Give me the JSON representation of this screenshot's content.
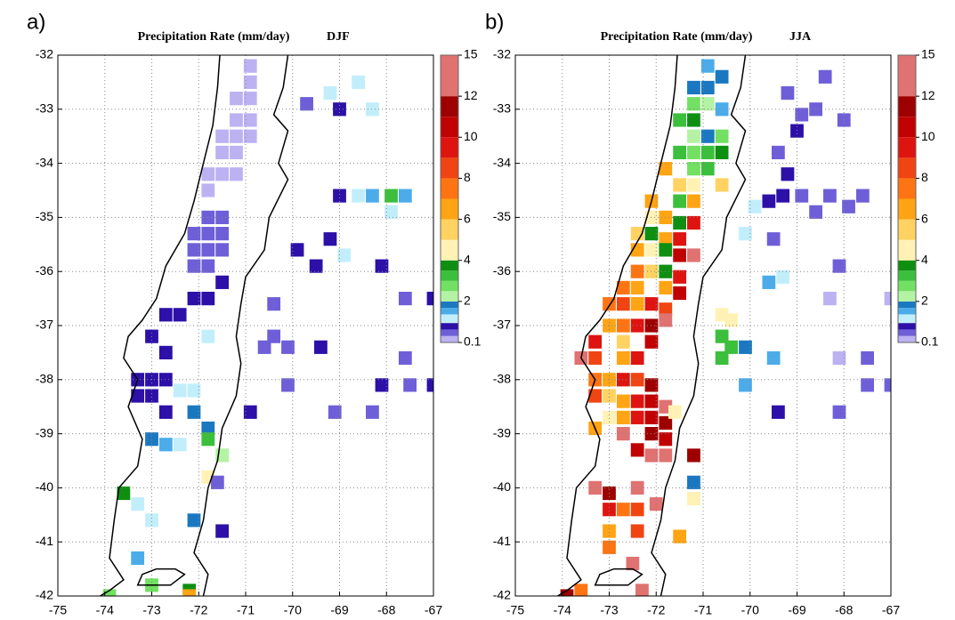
{
  "chart_data": [
    {
      "type": "gridmap",
      "panel_label": "a)",
      "title": "Precipitation Rate (mm/day)",
      "season": "DJF",
      "xlim": [
        -75,
        -67
      ],
      "ylim": [
        -42,
        -32
      ],
      "xticks": [
        -75,
        -74,
        -73,
        -72,
        -71,
        -70,
        -69,
        -68,
        -67
      ],
      "yticks": [
        -32,
        -33,
        -34,
        -35,
        -36,
        -37,
        -38,
        -39,
        -40,
        -41,
        -42
      ],
      "grid": true,
      "cell_size": [
        0.28,
        0.25
      ],
      "colorbar": {
        "levels": [
          0.1,
          0.4,
          0.7,
          1,
          1.4,
          1.7,
          2,
          2.5,
          3,
          3.5,
          4,
          5,
          6,
          7,
          8,
          9,
          10,
          11,
          12,
          15
        ],
        "colors": [
          "#bcb2f2",
          "#6e5fd8",
          "#2c10a8",
          "#c2eefb",
          "#4cacea",
          "#1b78c0",
          "#b4f2a4",
          "#72e062",
          "#3cbf3c",
          "#0e8f12",
          "#fff2b4",
          "#ffd262",
          "#ffa414",
          "#ff7412",
          "#f04412",
          "#de1410",
          "#c00202",
          "#9e0000",
          "#e07272"
        ],
        "ticks": [
          0.1,
          2,
          4,
          6,
          8,
          10,
          12,
          15
        ]
      },
      "cells": [
        [
          -70.9,
          -32.2,
          0.2
        ],
        [
          -70.9,
          -32.5,
          0.2
        ],
        [
          -71.2,
          -32.8,
          0.2
        ],
        [
          -70.9,
          -32.8,
          0.2
        ],
        [
          -71.2,
          -33.2,
          0.2
        ],
        [
          -70.9,
          -33.2,
          0.2
        ],
        [
          -71.5,
          -33.5,
          0.2
        ],
        [
          -71.2,
          -33.5,
          0.2
        ],
        [
          -70.9,
          -33.5,
          0.2
        ],
        [
          -71.5,
          -33.8,
          0.2
        ],
        [
          -71.2,
          -33.8,
          0.2
        ],
        [
          -71.8,
          -34.2,
          0.2
        ],
        [
          -71.5,
          -34.2,
          0.2
        ],
        [
          -71.2,
          -34.2,
          0.2
        ],
        [
          -71.8,
          -34.5,
          0.2
        ],
        [
          -71.8,
          -35,
          0.5
        ],
        [
          -71.5,
          -35,
          0.5
        ],
        [
          -72.1,
          -35.3,
          0.5
        ],
        [
          -71.8,
          -35.3,
          0.5
        ],
        [
          -71.5,
          -35.3,
          0.5
        ],
        [
          -72.1,
          -35.6,
          0.5
        ],
        [
          -71.8,
          -35.6,
          0.5
        ],
        [
          -71.5,
          -35.6,
          0.5
        ],
        [
          -72.1,
          -35.9,
          0.5
        ],
        [
          -71.8,
          -35.9,
          0.5
        ],
        [
          -71.5,
          -36.2,
          0.8
        ],
        [
          -72.1,
          -36.5,
          0.8
        ],
        [
          -71.8,
          -36.5,
          0.8
        ],
        [
          -72.7,
          -36.8,
          0.8
        ],
        [
          -72.4,
          -36.8,
          0.8
        ],
        [
          -73,
          -37.2,
          0.8
        ],
        [
          -72.7,
          -37.5,
          0.8
        ],
        [
          -73.3,
          -38,
          0.8
        ],
        [
          -73,
          -38,
          0.8
        ],
        [
          -72.7,
          -38,
          0.8
        ],
        [
          -73.3,
          -38.3,
          0.8
        ],
        [
          -73,
          -38.3,
          0.8
        ],
        [
          -72.7,
          -38.6,
          0.8
        ],
        [
          -72.4,
          -38.2,
          1.2
        ],
        [
          -72.1,
          -38.2,
          1.2
        ],
        [
          -71.8,
          -37.2,
          1.2
        ],
        [
          -72.4,
          -39.2,
          1.2
        ],
        [
          -73.3,
          -40.3,
          1.2
        ],
        [
          -73,
          -40.6,
          1.2
        ],
        [
          -72.1,
          -38.6,
          1.8
        ],
        [
          -71.8,
          -38.9,
          1.8
        ],
        [
          -73,
          -39.1,
          1.8
        ],
        [
          -72.1,
          -40.6,
          1.8
        ],
        [
          -73.3,
          -41.3,
          1.5
        ],
        [
          -72.7,
          -39.2,
          1.5
        ],
        [
          -71.8,
          -39.1,
          3.2
        ],
        [
          -73.6,
          -40.1,
          3.8
        ],
        [
          -71.5,
          -39.4,
          2.2
        ],
        [
          -73,
          -41.8,
          2.7
        ],
        [
          -72.2,
          -41.9,
          3.8
        ],
        [
          -73.9,
          -42,
          2.7
        ],
        [
          -71.8,
          -39.8,
          4.5
        ],
        [
          -72.2,
          -42,
          6.5
        ],
        [
          -69.2,
          -32.7,
          1.2
        ],
        [
          -68.6,
          -32.5,
          1.2
        ],
        [
          -69,
          -33,
          0.8
        ],
        [
          -68.3,
          -33,
          1.2
        ],
        [
          -69.7,
          -32.9,
          0.5
        ],
        [
          -69,
          -34.6,
          0.8
        ],
        [
          -68.3,
          -34.6,
          1.5
        ],
        [
          -68.6,
          -34.6,
          1.2
        ],
        [
          -67.9,
          -34.9,
          1.2
        ],
        [
          -67.6,
          -34.6,
          1.5
        ],
        [
          -67.9,
          -34.6,
          3.2
        ],
        [
          -69.2,
          -35.4,
          0.8
        ],
        [
          -68.9,
          -35.7,
          1.2
        ],
        [
          -69.9,
          -35.6,
          0.8
        ],
        [
          -69.5,
          -35.9,
          0.8
        ],
        [
          -68.1,
          -35.9,
          0.8
        ],
        [
          -67,
          -36.5,
          0.8
        ],
        [
          -67.6,
          -36.5,
          0.5
        ],
        [
          -70.4,
          -37.2,
          0.5
        ],
        [
          -70.1,
          -37.4,
          0.5
        ],
        [
          -69.4,
          -37.4,
          0.8
        ],
        [
          -68.1,
          -38.1,
          0.8
        ],
        [
          -67,
          -38.1,
          0.8
        ],
        [
          -71.5,
          -40.8,
          0.8
        ],
        [
          -71.6,
          -39.9,
          0.5
        ],
        [
          -70.6,
          -37.4,
          0.5
        ],
        [
          -70.9,
          -38.6,
          0.8
        ],
        [
          -69.1,
          -38.6,
          0.5
        ],
        [
          -68.3,
          -38.6,
          0.5
        ],
        [
          -67.6,
          -37.6,
          0.5
        ],
        [
          -67.5,
          -38.1,
          0.5
        ],
        [
          -70.4,
          -36.6,
          0.5
        ],
        [
          -70.1,
          -38.1,
          0.5
        ]
      ]
    },
    {
      "type": "gridmap",
      "panel_label": "b)",
      "title": "Precipitation Rate (mm/day)",
      "season": "JJA",
      "xlim": [
        -75,
        -67
      ],
      "ylim": [
        -42,
        -32
      ],
      "xticks": [
        -75,
        -74,
        -73,
        -72,
        -71,
        -70,
        -69,
        -68,
        -67
      ],
      "yticks": [
        -32,
        -33,
        -34,
        -35,
        -36,
        -37,
        -38,
        -39,
        -40,
        -41,
        -42
      ],
      "grid": true,
      "cell_size": [
        0.28,
        0.25
      ],
      "colorbar": {
        "levels": [
          0.1,
          0.4,
          0.7,
          1,
          1.4,
          1.7,
          2,
          2.5,
          3,
          3.5,
          4,
          5,
          6,
          7,
          8,
          9,
          10,
          11,
          12,
          15
        ],
        "colors": [
          "#bcb2f2",
          "#6e5fd8",
          "#2c10a8",
          "#c2eefb",
          "#4cacea",
          "#1b78c0",
          "#b4f2a4",
          "#72e062",
          "#3cbf3c",
          "#0e8f12",
          "#fff2b4",
          "#ffd262",
          "#ffa414",
          "#ff7412",
          "#f04412",
          "#de1410",
          "#c00202",
          "#9e0000",
          "#e07272"
        ],
        "ticks": [
          0.1,
          2,
          4,
          6,
          8,
          10,
          12,
          15
        ]
      },
      "cells": [
        [
          -70.9,
          -32.2,
          1.5
        ],
        [
          -70.6,
          -32.4,
          1.8
        ],
        [
          -71.2,
          -32.6,
          1.8
        ],
        [
          -70.9,
          -32.6,
          1.8
        ],
        [
          -71.2,
          -32.9,
          2.7
        ],
        [
          -70.9,
          -32.9,
          2.2
        ],
        [
          -70.6,
          -33,
          1.5
        ],
        [
          -71.5,
          -33.2,
          3.2
        ],
        [
          -71.2,
          -33.2,
          3.8
        ],
        [
          -71.2,
          -33.5,
          2.2
        ],
        [
          -70.9,
          -33.5,
          1.8
        ],
        [
          -70.6,
          -33.5,
          2.7
        ],
        [
          -71.5,
          -33.8,
          3.2
        ],
        [
          -71.2,
          -33.8,
          2.7
        ],
        [
          -70.9,
          -33.8,
          3.2
        ],
        [
          -70.6,
          -33.8,
          3.8
        ],
        [
          -71.8,
          -34.1,
          6.5
        ],
        [
          -71.2,
          -34.1,
          2.7
        ],
        [
          -70.9,
          -34.1,
          3.2
        ],
        [
          -71.5,
          -34.4,
          5.5
        ],
        [
          -71.2,
          -34.4,
          4.5
        ],
        [
          -70.6,
          -34.4,
          5.5
        ],
        [
          -72.1,
          -34.7,
          6.5
        ],
        [
          -71.5,
          -34.7,
          3.2
        ],
        [
          -71.2,
          -34.7,
          6.5
        ],
        [
          -72.1,
          -35,
          4.5
        ],
        [
          -71.8,
          -35,
          6.5
        ],
        [
          -71.5,
          -35.1,
          3.8
        ],
        [
          -71.2,
          -35.1,
          9.5
        ],
        [
          -72.4,
          -35.3,
          5.5
        ],
        [
          -72.1,
          -35.3,
          3.8
        ],
        [
          -71.8,
          -35.4,
          6.5
        ],
        [
          -71.5,
          -35.4,
          9.5
        ],
        [
          -72.4,
          -35.6,
          6.5
        ],
        [
          -72.1,
          -35.6,
          4.5
        ],
        [
          -71.8,
          -35.6,
          3.8
        ],
        [
          -71.5,
          -35.7,
          10.5
        ],
        [
          -71.2,
          -35.7,
          13
        ],
        [
          -72.4,
          -36,
          7.5
        ],
        [
          -72.1,
          -36,
          5.5
        ],
        [
          -71.8,
          -36,
          3.8
        ],
        [
          -71.5,
          -36.1,
          9.5
        ],
        [
          -72.7,
          -36.3,
          7.5
        ],
        [
          -72.4,
          -36.3,
          6.5
        ],
        [
          -71.8,
          -36.3,
          6.5
        ],
        [
          -71.5,
          -36.4,
          10.5
        ],
        [
          -73,
          -36.6,
          7.5
        ],
        [
          -72.7,
          -36.6,
          8.5
        ],
        [
          -72.4,
          -36.6,
          6.5
        ],
        [
          -72.1,
          -36.6,
          9.5
        ],
        [
          -71.8,
          -36.7,
          8.5
        ],
        [
          -73,
          -37,
          6.5
        ],
        [
          -72.7,
          -37,
          7.5
        ],
        [
          -72.4,
          -37,
          9.5
        ],
        [
          -72.1,
          -37,
          11.5
        ],
        [
          -71.8,
          -36.9,
          13
        ],
        [
          -73.3,
          -37.3,
          9.5
        ],
        [
          -72.7,
          -37.3,
          5.5
        ],
        [
          -72.1,
          -37.3,
          10.5
        ],
        [
          -73.6,
          -37.6,
          13
        ],
        [
          -73.3,
          -37.6,
          8.5
        ],
        [
          -72.7,
          -37.6,
          6.5
        ],
        [
          -72.4,
          -37.6,
          9.5
        ],
        [
          -73.3,
          -38,
          7.5
        ],
        [
          -73,
          -38,
          6.5
        ],
        [
          -72.7,
          -38,
          9.5
        ],
        [
          -72.4,
          -38,
          8.5
        ],
        [
          -72.1,
          -38.1,
          11.5
        ],
        [
          -73.3,
          -38.3,
          8.5
        ],
        [
          -73,
          -38.3,
          5.5
        ],
        [
          -72.7,
          -38.4,
          6.5
        ],
        [
          -72.4,
          -38.4,
          9.5
        ],
        [
          -72.1,
          -38.4,
          10.5
        ],
        [
          -71.8,
          -38.5,
          13
        ],
        [
          -73,
          -38.7,
          4.5
        ],
        [
          -72.7,
          -38.7,
          6.5
        ],
        [
          -72.4,
          -38.7,
          9.5
        ],
        [
          -72.1,
          -38.7,
          10.5
        ],
        [
          -71.8,
          -38.8,
          11.5
        ],
        [
          -73.3,
          -38.9,
          6.5
        ],
        [
          -72.7,
          -39,
          13
        ],
        [
          -72.1,
          -39,
          11.5
        ],
        [
          -71.8,
          -39.1,
          10.5
        ],
        [
          -72.4,
          -39.3,
          10.5
        ],
        [
          -72.1,
          -39.4,
          13
        ],
        [
          -71.8,
          -39.4,
          13
        ],
        [
          -73.3,
          -40,
          13
        ],
        [
          -73,
          -40.1,
          11.5
        ],
        [
          -72.4,
          -40,
          13
        ],
        [
          -73,
          -40.4,
          9.5
        ],
        [
          -72.7,
          -40.4,
          7.5
        ],
        [
          -72.4,
          -40.4,
          8.5
        ],
        [
          -72,
          -40.3,
          13
        ],
        [
          -73,
          -40.8,
          6.5
        ],
        [
          -72.4,
          -40.8,
          8.5
        ],
        [
          -73,
          -41.1,
          7.5
        ],
        [
          -72.5,
          -41.4,
          13
        ],
        [
          -73.6,
          -41.9,
          7.5
        ],
        [
          -73.9,
          -42,
          11.5
        ],
        [
          -72.3,
          -41.9,
          13
        ],
        [
          -71.5,
          -40.9,
          6.5
        ],
        [
          -71.2,
          -39.4,
          11.5
        ],
        [
          -71.2,
          -39.9,
          1.8
        ],
        [
          -71.2,
          -40.2,
          4.5
        ],
        [
          -71.6,
          -38.6,
          4.5
        ],
        [
          -70.6,
          -36.8,
          4.5
        ],
        [
          -70.4,
          -36.9,
          4.5
        ],
        [
          -70.6,
          -37.2,
          3.2
        ],
        [
          -70.4,
          -37.4,
          3.2
        ],
        [
          -70.1,
          -37.4,
          1.8
        ],
        [
          -70.6,
          -37.6,
          3.2
        ],
        [
          -69.5,
          -37.6,
          1.5
        ],
        [
          -70.1,
          -38.1,
          1.5
        ],
        [
          -69.6,
          -36.2,
          1.5
        ],
        [
          -69.3,
          -36.1,
          1.2
        ],
        [
          -69.4,
          -38.6,
          0.8
        ],
        [
          -68.1,
          -38.6,
          0.5
        ],
        [
          -68.4,
          -32.4,
          0.5
        ],
        [
          -69.2,
          -32.7,
          0.5
        ],
        [
          -68.9,
          -33.1,
          0.5
        ],
        [
          -68.6,
          -33,
          0.5
        ],
        [
          -69,
          -33.4,
          0.8
        ],
        [
          -68,
          -33.2,
          0.5
        ],
        [
          -69.4,
          -33.8,
          0.5
        ],
        [
          -69.2,
          -34.2,
          0.8
        ],
        [
          -69.3,
          -34.6,
          0.8
        ],
        [
          -69.6,
          -34.7,
          0.8
        ],
        [
          -68.9,
          -34.6,
          0.5
        ],
        [
          -68.3,
          -34.6,
          0.5
        ],
        [
          -67.9,
          -34.8,
          0.5
        ],
        [
          -67.6,
          -34.6,
          0.5
        ],
        [
          -68.6,
          -34.9,
          0.5
        ],
        [
          -69.9,
          -34.8,
          1.2
        ],
        [
          -70.1,
          -35.3,
          1.2
        ],
        [
          -69.5,
          -35.4,
          0.5
        ],
        [
          -68.1,
          -35.9,
          0.5
        ],
        [
          -67,
          -36.5,
          0.2
        ],
        [
          -68.3,
          -36.5,
          0.2
        ],
        [
          -68.1,
          -37.6,
          0.2
        ],
        [
          -67.5,
          -37.6,
          0.5
        ],
        [
          -67.5,
          -38.1,
          0.5
        ],
        [
          -67,
          -38.1,
          0.5
        ]
      ]
    }
  ]
}
